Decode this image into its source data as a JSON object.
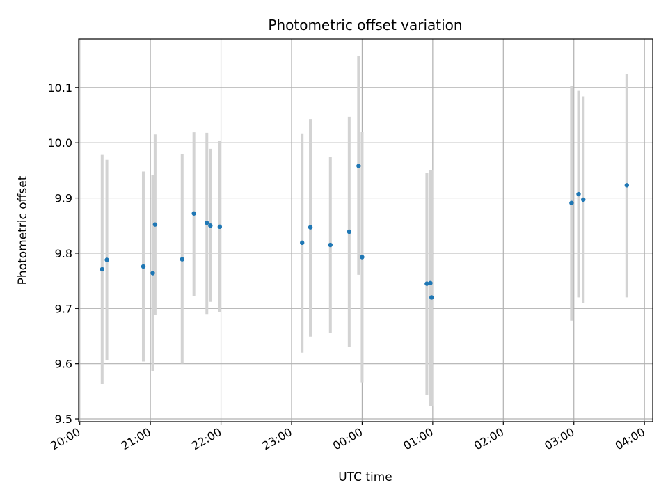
{
  "chart_data": {
    "type": "scatter",
    "title": "Photometric offset variation",
    "xlabel": "UTC time",
    "ylabel": "Photometric offset",
    "x_axis_kind": "datetime",
    "x_range": [
      "2023-01-01T19:59:00",
      "2023-01-02T04:07:00"
    ],
    "x_ticks": [
      {
        "t": "2023-01-01T20:00:00",
        "label": "20:00"
      },
      {
        "t": "2023-01-01T21:00:00",
        "label": "21:00"
      },
      {
        "t": "2023-01-01T22:00:00",
        "label": "22:00"
      },
      {
        "t": "2023-01-01T23:00:00",
        "label": "23:00"
      },
      {
        "t": "2023-01-02T00:00:00",
        "label": "00:00"
      },
      {
        "t": "2023-01-02T01:00:00",
        "label": "01:00"
      },
      {
        "t": "2023-01-02T02:00:00",
        "label": "02:00"
      },
      {
        "t": "2023-01-02T03:00:00",
        "label": "03:00"
      },
      {
        "t": "2023-01-02T04:00:00",
        "label": "04:00"
      }
    ],
    "ylim": [
      9.495,
      10.188
    ],
    "y_ticks": [
      9.5,
      9.6,
      9.7,
      9.8,
      9.9,
      10.0,
      10.1
    ],
    "y_tick_labels": [
      "9.5",
      "9.6",
      "9.7",
      "9.8",
      "9.9",
      "10.0",
      "10.1"
    ],
    "grid": true,
    "colors": {
      "point": "#1f77b4",
      "errorbar": "#d3d3d3",
      "grid": "#b0b0b0"
    },
    "points": [
      {
        "t": "2023-01-01T20:19:00",
        "y": 9.771,
        "err_low": 9.563,
        "err_high": 9.978
      },
      {
        "t": "2023-01-01T20:23:00",
        "y": 9.788,
        "err_low": 9.607,
        "err_high": 9.969
      },
      {
        "t": "2023-01-01T20:54:00",
        "y": 9.776,
        "err_low": 9.604,
        "err_high": 9.948
      },
      {
        "t": "2023-01-01T21:02:00",
        "y": 9.764,
        "err_low": 9.587,
        "err_high": 9.942
      },
      {
        "t": "2023-01-01T21:04:00",
        "y": 9.852,
        "err_low": 9.688,
        "err_high": 10.015
      },
      {
        "t": "2023-01-01T21:27:00",
        "y": 9.789,
        "err_low": 9.6,
        "err_high": 9.979
      },
      {
        "t": "2023-01-01T21:37:00",
        "y": 9.872,
        "err_low": 9.723,
        "err_high": 10.019
      },
      {
        "t": "2023-01-01T21:48:00",
        "y": 9.855,
        "err_low": 9.69,
        "err_high": 10.018
      },
      {
        "t": "2023-01-01T21:51:00",
        "y": 9.85,
        "err_low": 9.712,
        "err_high": 9.989
      },
      {
        "t": "2023-01-01T21:59:00",
        "y": 9.848,
        "err_low": 9.693,
        "err_high": 10.003
      },
      {
        "t": "2023-01-01T23:09:00",
        "y": 9.819,
        "err_low": 9.62,
        "err_high": 10.017
      },
      {
        "t": "2023-01-01T23:16:00",
        "y": 9.847,
        "err_low": 9.649,
        "err_high": 10.043
      },
      {
        "t": "2023-01-01T23:33:00",
        "y": 9.815,
        "err_low": 9.655,
        "err_high": 9.975
      },
      {
        "t": "2023-01-01T23:49:00",
        "y": 9.839,
        "err_low": 9.63,
        "err_high": 10.047
      },
      {
        "t": "2023-01-01T23:57:00",
        "y": 9.958,
        "err_low": 9.761,
        "err_high": 10.157
      },
      {
        "t": "2023-01-02T00:00:00",
        "y": 9.793,
        "err_low": 9.566,
        "err_high": 10.02
      },
      {
        "t": "2023-01-02T00:55:00",
        "y": 9.745,
        "err_low": 9.544,
        "err_high": 9.945
      },
      {
        "t": "2023-01-02T00:58:00",
        "y": 9.746,
        "err_low": 9.523,
        "err_high": 9.95
      },
      {
        "t": "2023-01-02T00:59:00",
        "y": 9.72,
        "err_low": 9.523,
        "err_high": 9.95
      },
      {
        "t": "2023-01-02T02:58:00",
        "y": 9.891,
        "err_low": 9.678,
        "err_high": 10.103
      },
      {
        "t": "2023-01-02T03:04:00",
        "y": 9.907,
        "err_low": 9.72,
        "err_high": 10.094
      },
      {
        "t": "2023-01-02T03:08:00",
        "y": 9.897,
        "err_low": 9.71,
        "err_high": 10.084
      },
      {
        "t": "2023-01-02T03:45:00",
        "y": 9.923,
        "err_low": 9.72,
        "err_high": 10.124
      }
    ]
  }
}
